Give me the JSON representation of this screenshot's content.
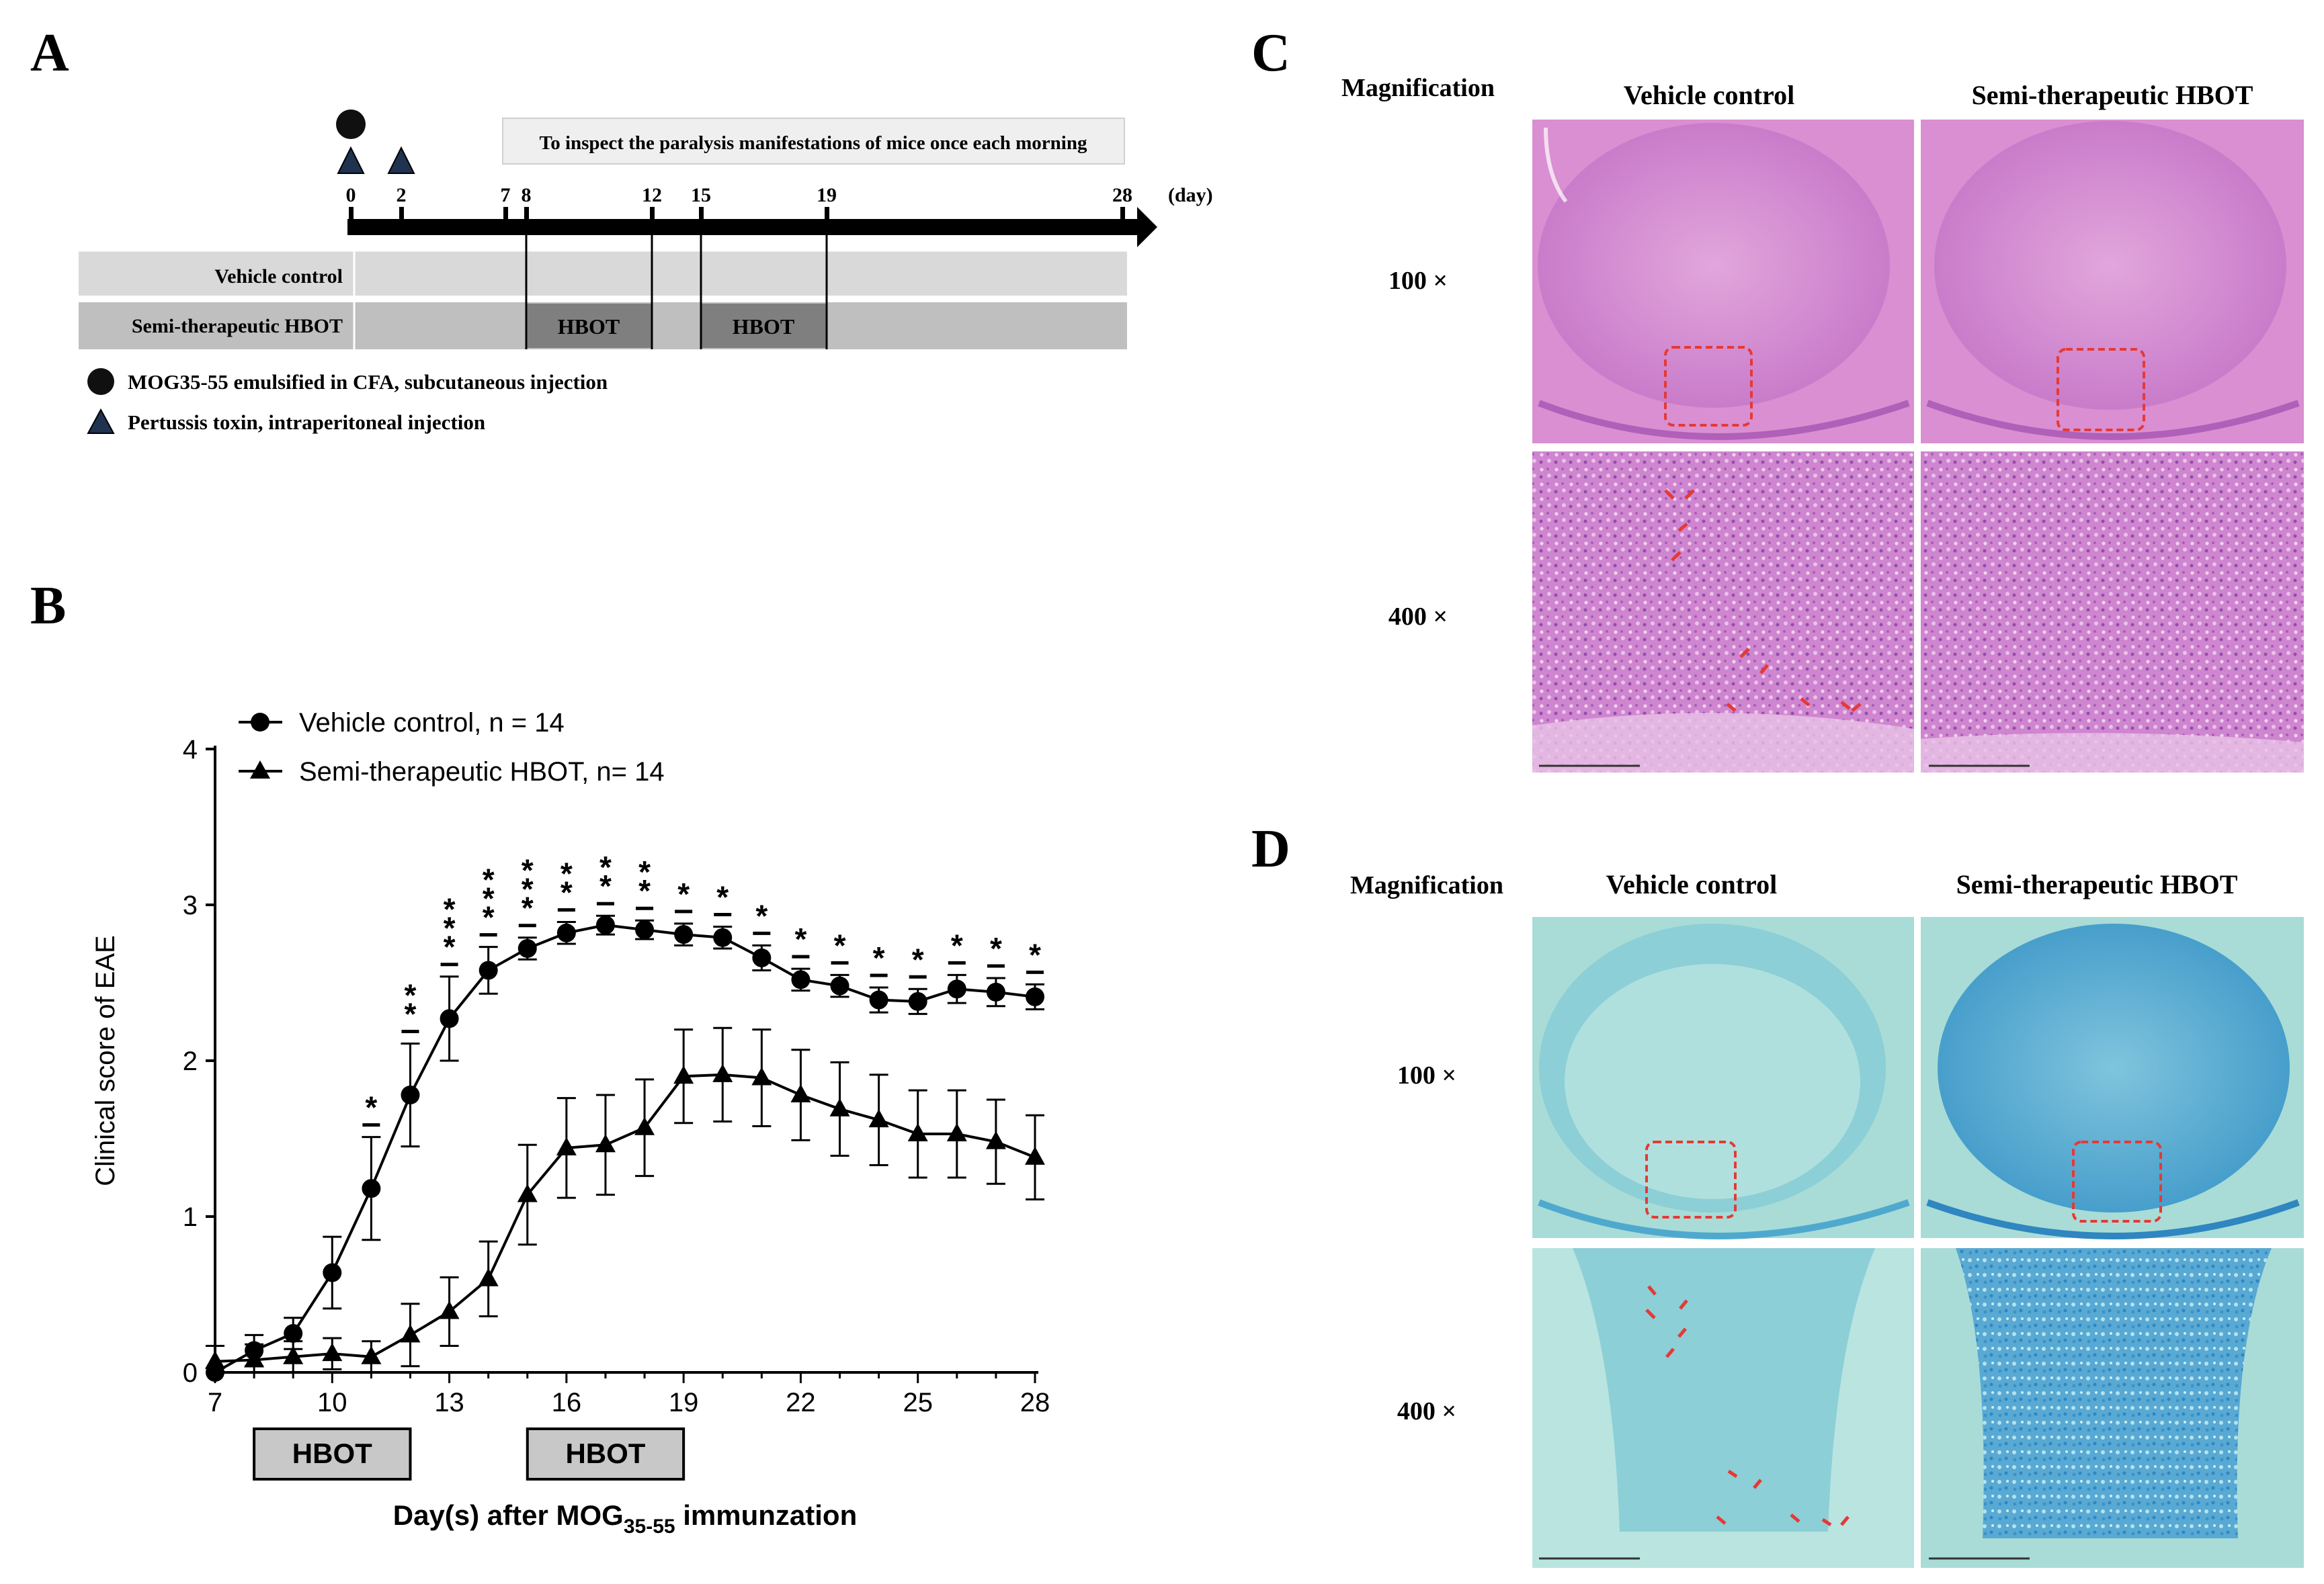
{
  "panel_letters": {
    "a": "A",
    "b": "B",
    "c": "C",
    "d": "D"
  },
  "colors": {
    "vehicle_row": "#d9d9d9",
    "hbot_row": "#bfbfbf",
    "hbot_block": "#7f7f7f",
    "he_background": "#d98fd1",
    "he_tissue": "#c56bc8",
    "lfb_background": "#a9dcd6",
    "lfb_tissue": "#4fa9cf",
    "roi_box": "#e53935",
    "lesion_arrow": "#e53935"
  },
  "panel_a": {
    "inspect_note": "To inspect the paralysis manifestations of mice once each morning",
    "timeline_days": [
      "0",
      "2",
      "7",
      "8",
      "12",
      "15",
      "19",
      "28"
    ],
    "day_unit": "(day)",
    "group_labels": {
      "vehicle": "Vehicle control",
      "hbot": "Semi-therapeutic HBOT"
    },
    "hbot_block_label": "HBOT",
    "legend": {
      "mog": "MOG35-55 emulsified in CFA, subcutaneous injection",
      "pertussis": "Pertussis toxin, intraperitoneal injection"
    }
  },
  "panel_b": {
    "hbot_boxes": [
      "HBOT",
      "HBOT"
    ]
  },
  "panel_c": {
    "header": {
      "magnification": "Magnification",
      "vehicle": "Vehicle control",
      "hbot": "Semi-therapeutic HBOT"
    },
    "rows": [
      "100 ×",
      "400 ×"
    ]
  },
  "panel_d": {
    "header": {
      "magnification": "Magnification",
      "vehicle": "Vehicle control",
      "hbot": "Semi-therapeutic HBOT"
    },
    "rows": [
      "100 ×",
      "400 ×"
    ]
  },
  "chart_data": {
    "type": "line",
    "title": "",
    "xlabel": "Day(s) after MOG",
    "xlabel_subscript": "35-55",
    "xlabel_suffix": " immunzation",
    "ylabel": "Clinical score of EAE",
    "xlim": [
      7,
      28
    ],
    "ylim": [
      0,
      4
    ],
    "xticks": [
      7,
      10,
      13,
      16,
      19,
      22,
      25,
      28
    ],
    "yticks": [
      0,
      1,
      2,
      3,
      4
    ],
    "legend_position": "top-left",
    "x": [
      7,
      8,
      9,
      10,
      11,
      12,
      13,
      14,
      15,
      16,
      17,
      18,
      19,
      20,
      21,
      22,
      23,
      24,
      25,
      26,
      27,
      28
    ],
    "series": [
      {
        "name": "Vehicle control, n = 14",
        "marker": "circle",
        "values": [
          0.0,
          0.14,
          0.25,
          0.64,
          1.18,
          1.78,
          2.27,
          2.58,
          2.72,
          2.82,
          2.87,
          2.84,
          2.81,
          2.79,
          2.66,
          2.52,
          2.48,
          2.39,
          2.38,
          2.46,
          2.44,
          2.41
        ],
        "errors": [
          0.0,
          0.1,
          0.1,
          0.23,
          0.33,
          0.33,
          0.27,
          0.15,
          0.07,
          0.07,
          0.06,
          0.06,
          0.07,
          0.07,
          0.08,
          0.07,
          0.07,
          0.08,
          0.08,
          0.09,
          0.09,
          0.08
        ]
      },
      {
        "name": "Semi-therapeutic HBOT, n= 14",
        "marker": "triangle",
        "values": [
          0.07,
          0.08,
          0.1,
          0.12,
          0.1,
          0.24,
          0.39,
          0.6,
          1.14,
          1.44,
          1.46,
          1.57,
          1.9,
          1.91,
          1.89,
          1.78,
          1.69,
          1.62,
          1.53,
          1.53,
          1.48,
          1.38
        ],
        "errors": [
          0.1,
          0.1,
          0.1,
          0.1,
          0.1,
          0.2,
          0.22,
          0.24,
          0.32,
          0.32,
          0.32,
          0.31,
          0.3,
          0.3,
          0.31,
          0.29,
          0.3,
          0.29,
          0.28,
          0.28,
          0.27,
          0.27
        ]
      }
    ],
    "significance": [
      {
        "x": 11,
        "label": "*"
      },
      {
        "x": 12,
        "label": "**"
      },
      {
        "x": 13,
        "label": "***"
      },
      {
        "x": 14,
        "label": "***"
      },
      {
        "x": 15,
        "label": "***"
      },
      {
        "x": 16,
        "label": "**"
      },
      {
        "x": 17,
        "label": "**"
      },
      {
        "x": 18,
        "label": "**"
      },
      {
        "x": 19,
        "label": "*"
      },
      {
        "x": 20,
        "label": "*"
      },
      {
        "x": 21,
        "label": "*"
      },
      {
        "x": 22,
        "label": "*"
      },
      {
        "x": 23,
        "label": "*"
      },
      {
        "x": 24,
        "label": "*"
      },
      {
        "x": 25,
        "label": "*"
      },
      {
        "x": 26,
        "label": "*"
      },
      {
        "x": 27,
        "label": "*"
      },
      {
        "x": 28,
        "label": "*"
      }
    ],
    "hbot_windows": [
      [
        8,
        12
      ],
      [
        15,
        19
      ]
    ]
  }
}
